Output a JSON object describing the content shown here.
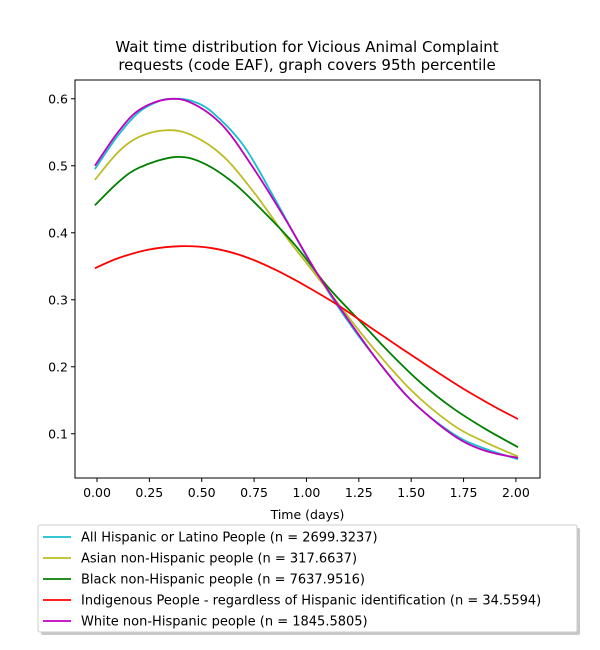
{
  "chart_data": {
    "type": "line",
    "title": "Wait time distribution  for Vicious Animal Complaint requests (code EAF), graph covers 95th percentile",
    "title_lines": [
      "Wait time distribution  for Vicious Animal Complaint",
      "requests (code EAF), graph covers 95th percentile"
    ],
    "xlabel": "Time (days)",
    "ylabel": "",
    "xlim": [
      -0.105,
      2.115
    ],
    "ylim": [
      0.034,
      0.628
    ],
    "xticks": [
      0.0,
      0.25,
      0.5,
      0.75,
      1.0,
      1.25,
      1.5,
      1.75,
      2.0
    ],
    "xtick_labels": [
      "0.00",
      "0.25",
      "0.50",
      "0.75",
      "1.00",
      "1.25",
      "1.50",
      "1.75",
      "2.00"
    ],
    "yticks": [
      0.1,
      0.2,
      0.3,
      0.4,
      0.5,
      0.6
    ],
    "ytick_labels": [
      "0.1",
      "0.2",
      "0.3",
      "0.4",
      "0.5",
      "0.6"
    ],
    "grid": false,
    "legend_position": "below",
    "series": [
      {
        "name": "All Hispanic or Latino People (n = 2699.3237)",
        "color": "#17becf",
        "x": [
          -0.01,
          0.1,
          0.2,
          0.3,
          0.37,
          0.45,
          0.55,
          0.7,
          0.85,
          1.0,
          1.15,
          1.3,
          1.5,
          1.7,
          1.85,
          2.01
        ],
        "y": [
          0.495,
          0.545,
          0.58,
          0.597,
          0.6,
          0.597,
          0.58,
          0.53,
          0.45,
          0.365,
          0.29,
          0.225,
          0.15,
          0.1,
          0.078,
          0.062
        ]
      },
      {
        "name": "Asian non-Hispanic people (n = 317.6637)",
        "color": "#bcbd22",
        "x": [
          -0.01,
          0.1,
          0.2,
          0.33,
          0.45,
          0.6,
          0.75,
          0.9,
          1.0,
          1.15,
          1.3,
          1.5,
          1.7,
          1.85,
          2.01
        ],
        "y": [
          0.479,
          0.52,
          0.543,
          0.553,
          0.546,
          0.515,
          0.46,
          0.395,
          0.355,
          0.295,
          0.235,
          0.165,
          0.113,
          0.088,
          0.066
        ]
      },
      {
        "name": "Black non-Hispanic people (n = 7637.9516)",
        "color": "#008000",
        "x": [
          -0.01,
          0.1,
          0.2,
          0.37,
          0.5,
          0.65,
          0.8,
          0.95,
          1.1,
          1.25,
          1.4,
          1.55,
          1.7,
          1.85,
          2.01
        ],
        "y": [
          0.441,
          0.475,
          0.497,
          0.513,
          0.505,
          0.475,
          0.43,
          0.38,
          0.32,
          0.27,
          0.22,
          0.175,
          0.138,
          0.108,
          0.08
        ]
      },
      {
        "name": "Indigenous People - regardless of Hispanic identification (n = 34.5594)",
        "color": "#ff0000",
        "x": [
          -0.01,
          0.1,
          0.25,
          0.4,
          0.55,
          0.7,
          0.85,
          1.0,
          1.15,
          1.3,
          1.45,
          1.6,
          1.75,
          1.9,
          2.01
        ],
        "y": [
          0.347,
          0.362,
          0.375,
          0.38,
          0.377,
          0.365,
          0.345,
          0.32,
          0.292,
          0.26,
          0.228,
          0.197,
          0.167,
          0.14,
          0.122
        ]
      },
      {
        "name": "White non-Hispanic people (n = 1845.5805)",
        "color": "#bf00bf",
        "x": [
          -0.01,
          0.1,
          0.2,
          0.33,
          0.45,
          0.6,
          0.75,
          0.9,
          1.05,
          1.2,
          1.35,
          1.5,
          1.7,
          1.85,
          2.01
        ],
        "y": [
          0.5,
          0.55,
          0.583,
          0.599,
          0.594,
          0.56,
          0.495,
          0.42,
          0.34,
          0.27,
          0.205,
          0.15,
          0.098,
          0.075,
          0.064
        ]
      }
    ]
  }
}
